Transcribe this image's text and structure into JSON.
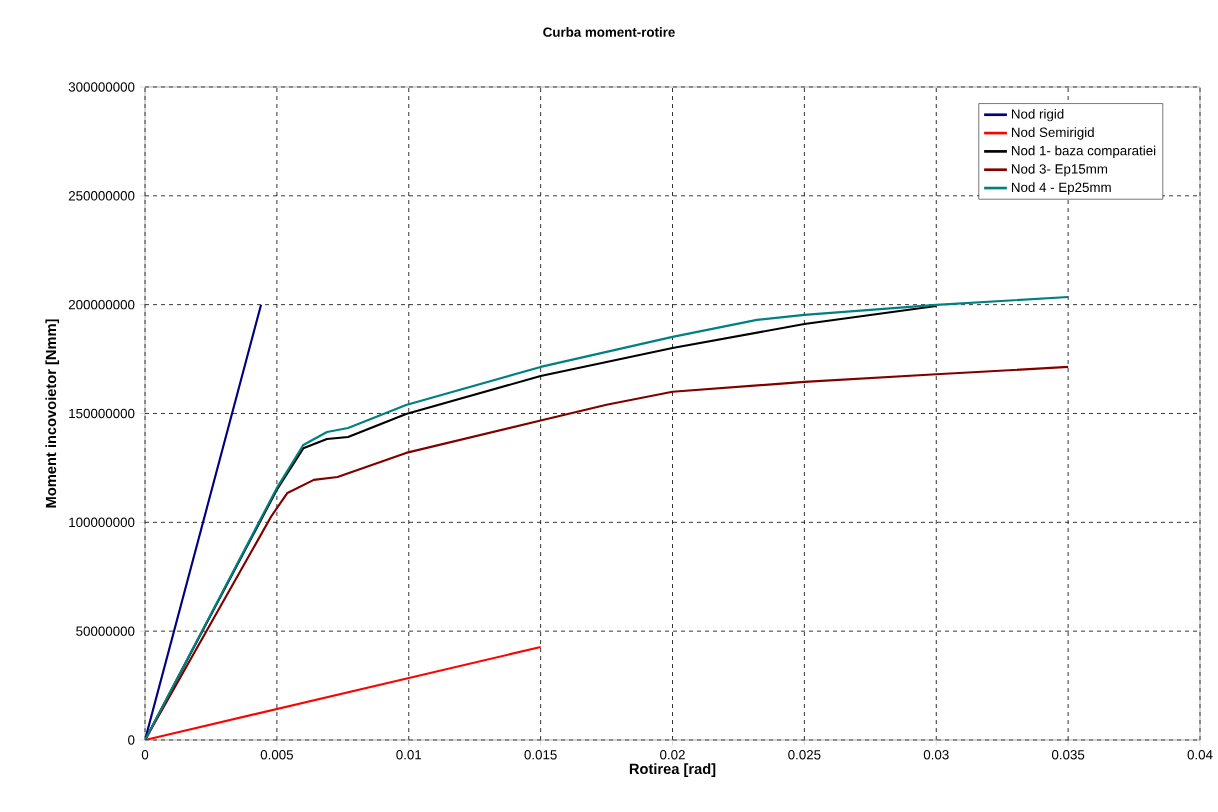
{
  "chart_data": {
    "type": "line",
    "title": "Curba moment-rotire",
    "xlabel": "Rotirea [rad]",
    "ylabel": "Moment incovoietor [Nmm]",
    "xlim": [
      0,
      0.04
    ],
    "xticks": [
      0,
      0.005,
      0.01,
      0.015,
      0.02,
      0.025,
      0.03,
      0.035,
      0.04
    ],
    "ylim": [
      0,
      300000000
    ],
    "yticks": [
      0,
      50000000,
      100000000,
      150000000,
      200000000,
      250000000,
      300000000
    ],
    "grid": true,
    "legend": "top right",
    "line_style": "solid",
    "series": [
      {
        "name": "Nod rigid",
        "color": "#000080",
        "x": [
          0,
          0.0044
        ],
        "values": [
          0,
          200000000
        ]
      },
      {
        "name": "Nod Semirigid",
        "color": "#ff0000",
        "x": [
          0,
          0.015
        ],
        "values": [
          0,
          42700000
        ]
      },
      {
        "name": "Nod 1- baza comparatiei",
        "color": "#000000",
        "x": [
          0,
          0.005,
          0.006,
          0.0069,
          0.0077,
          0.0099,
          0.015,
          0.02,
          0.025,
          0.03
        ],
        "values": [
          0,
          115000000,
          134000000,
          138300000,
          139200000,
          149800000,
          167200000,
          180100000,
          191100000,
          199400000
        ]
      },
      {
        "name": "Nod 3- Ep15mm",
        "color": "#800000",
        "x": [
          0,
          0.0048,
          0.0054,
          0.0064,
          0.0073,
          0.0099,
          0.015,
          0.0175,
          0.02,
          0.025,
          0.03,
          0.035
        ],
        "values": [
          0,
          103000000,
          113500000,
          119500000,
          120800000,
          131900000,
          146800000,
          154000000,
          160000000,
          164500000,
          168000000,
          171400000
        ]
      },
      {
        "name": "Nod 4 - Ep25mm",
        "color": "#008080",
        "x": [
          0,
          0.005,
          0.006,
          0.0069,
          0.0077,
          0.0099,
          0.015,
          0.02,
          0.0232,
          0.025,
          0.03,
          0.035
        ],
        "values": [
          0,
          115800000,
          135500000,
          141500000,
          143300000,
          153900000,
          171400000,
          185200000,
          193000000,
          195300000,
          199900000,
          203500000
        ]
      }
    ]
  }
}
